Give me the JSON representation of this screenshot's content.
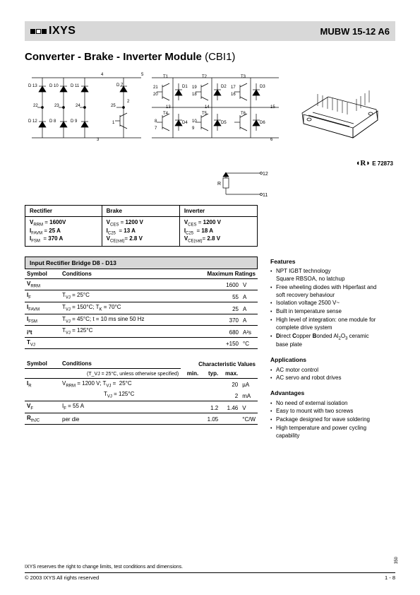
{
  "header": {
    "brand": "IXYS",
    "part": "MUBW 15-12 A6"
  },
  "title_main": "Converter - Brake - Inverter Module",
  "title_suffix": "(CBI1)",
  "ul_mark": "E 72873",
  "spec_table": {
    "headers": [
      "Rectifier",
      "Brake",
      "Inverter"
    ],
    "rectifier": [
      "V_RRM = 1600V",
      "I_FAVM = 25 A",
      "I_FSM = 370 A"
    ],
    "brake": [
      "V_CES = 1200 V",
      "I_C25 = 13 A",
      "V_CE(sat) = 2.8 V"
    ],
    "inverter": [
      "V_CES = 1200 V",
      "I_C25 = 18 A",
      "V_CE(sat) = 2.8 V"
    ]
  },
  "section1_title": "Input Rectifier Bridge D8 - D13",
  "ratings": {
    "head_symbol": "Symbol",
    "head_cond": "Conditions",
    "head_max": "Maximum Ratings",
    "rows": [
      {
        "sym": "V_RRM",
        "cond": "",
        "val": "1600",
        "unit": "V"
      },
      {
        "sym": "I_F",
        "cond": "T_VJ = 25°C",
        "val": "55",
        "unit": "A"
      },
      {
        "sym": "I_FAVM",
        "cond": "T_VJ = 150°C; T_K = 70°C",
        "val": "25",
        "unit": "A"
      },
      {
        "sym": "I_FSM",
        "cond": "T_VJ = 45°C; t = 10 ms sine 50 Hz",
        "val": "370",
        "unit": "A"
      },
      {
        "sym": "i²t",
        "cond": "T_VJ = 125°C",
        "val": "680",
        "unit": "A²s"
      },
      {
        "sym": "T_VJ",
        "cond": "",
        "val": "+150",
        "unit": "°C"
      }
    ]
  },
  "char": {
    "head_symbol": "Symbol",
    "head_cond": "Conditions",
    "head_title": "Characteristic Values",
    "head_note": "(T_VJ = 25°C, unless otherwise specified)",
    "cols": [
      "min.",
      "typ.",
      "max."
    ],
    "rows": [
      {
        "sym": "I_R",
        "cond1": "V_RRM = 1200 V; T_VJ =  25°C",
        "cond2": "T_VJ = 125°C",
        "min": "",
        "typ": "",
        "max1": "20",
        "unit1": "µA",
        "max2": "2",
        "unit2": "mA"
      },
      {
        "sym": "V_F",
        "cond": "I_F = 55 A",
        "min": "",
        "typ": "1.2",
        "max": "1.46",
        "unit": "V"
      },
      {
        "sym": "R_thJC",
        "cond": "per die",
        "min": "",
        "typ": "1.05",
        "max": "",
        "unit": "°C/W"
      }
    ]
  },
  "features_title": "Features",
  "features": [
    "NPT IGBT technology",
    "Square RBSOA, no latchup",
    "Free wheeling diodes with Hiperfast and soft recovery behaviour",
    "Isolation voltage 2500 V~",
    "Built in temperature sense",
    "High level of integration: one module for complete drive system",
    "Direct Copper Bonded Al₂O₃ ceramic base plate"
  ],
  "apps_title": "Applications",
  "apps": [
    "AC motor control",
    "AC servo and robot drives"
  ],
  "adv_title": "Advantages",
  "adv": [
    "No need of external isolation",
    "Easy to mount with two screws",
    "Package designed for wave soldering",
    "High temperature and power cycling capability"
  ],
  "footer_note": "IXYS reserves the right to change limits, test conditions and dimensions.",
  "footer_left": "© 2003 IXYS All rights reserved",
  "footer_right": "1 - 8",
  "side_num": "350"
}
